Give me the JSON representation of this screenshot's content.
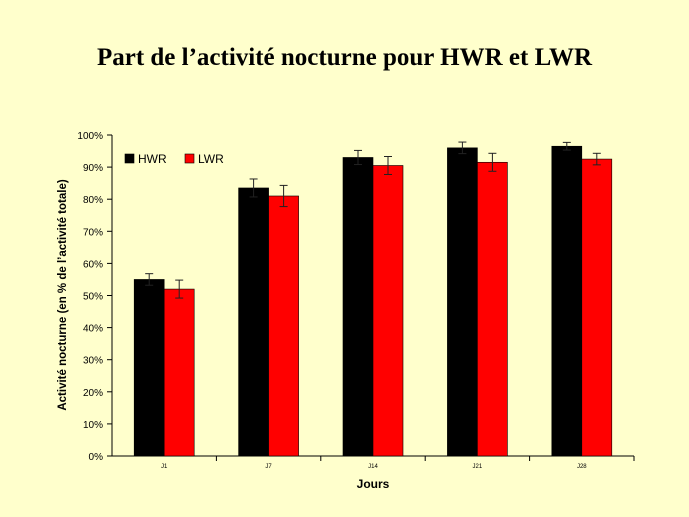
{
  "chart_data": {
    "type": "bar",
    "title": "Part de l’activité nocturne pour HWR et LWR",
    "xlabel": "Jours",
    "ylabel": "Activité nocturne (en % de l’activité totale)",
    "categories": [
      "J1",
      "J7",
      "J14",
      "J21",
      "J28"
    ],
    "ylim": [
      0,
      100
    ],
    "yticks": [
      0,
      10,
      20,
      30,
      40,
      50,
      60,
      70,
      80,
      90,
      100
    ],
    "ytick_labels": [
      "0%",
      "10%",
      "20%",
      "30%",
      "40%",
      "50%",
      "60%",
      "70%",
      "80%",
      "90%",
      "100%"
    ],
    "series": [
      {
        "name": "HWR",
        "color": "#000000",
        "values": [
          55,
          83.5,
          93,
          96,
          96.5
        ],
        "errors": [
          1.8,
          2.8,
          2.2,
          1.8,
          1.2
        ]
      },
      {
        "name": "LWR",
        "color": "#ff0000",
        "values": [
          52,
          81,
          90.5,
          91.5,
          92.5
        ],
        "errors": [
          2.8,
          3.3,
          2.8,
          2.8,
          1.8
        ]
      }
    ],
    "grid": false,
    "legend": "top-left"
  }
}
